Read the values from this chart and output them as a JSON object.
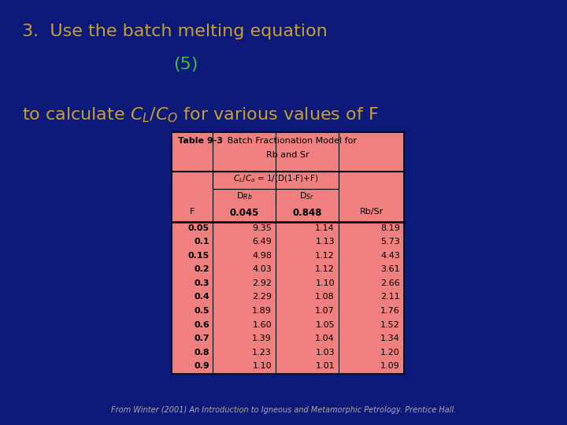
{
  "bg_color": "#0d1a7a",
  "title_line1": "3.  Use the batch melting equation",
  "title_line2": "(5)",
  "title_line3": "to calculate $C_L$/$C_O$ for various values of F",
  "title_color": "#c8a030",
  "sub_color": "#44bb44",
  "table_title_bold": "Table 9-3",
  "table_title_rest": ".  Batch Fractionation Model for\nRb and Sr",
  "F_values": [
    "0.05",
    "0.1",
    "0.15",
    "0.2",
    "0.3",
    "0.4",
    "0.5",
    "0.6",
    "0.7",
    "0.8",
    "0.9"
  ],
  "D_Rb_values": [
    "9.35",
    "6.49",
    "4.98",
    "4.03",
    "2.92",
    "2.29",
    "1.89",
    "1.60",
    "1.39",
    "1.23",
    "1.10"
  ],
  "D_Sr_values": [
    "1.14",
    "1.13",
    "1.12",
    "1.12",
    "1.10",
    "1.08",
    "1.07",
    "1.05",
    "1.04",
    "1.03",
    "1.01"
  ],
  "RbSr_values": [
    "8.19",
    "5.73",
    "4.43",
    "3.61",
    "2.66",
    "2.11",
    "1.76",
    "1.52",
    "1.34",
    "1.20",
    "1.09"
  ],
  "table_bg": "#f08080",
  "footer": "From Winter (2001) An Introduction to Igneous and Metamorphic Petrology. Prentice Hall.",
  "footer_color": "#aaaaaa"
}
